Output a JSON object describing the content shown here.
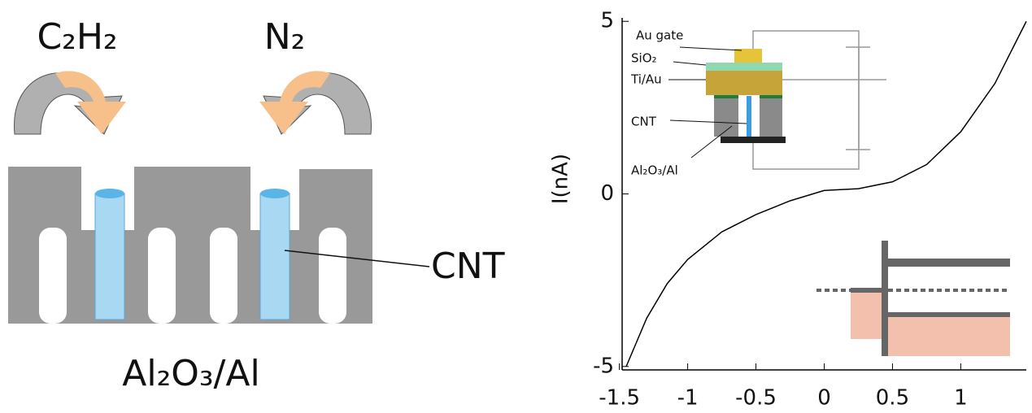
{
  "diagram": {
    "gas_left": "C₂H₂",
    "gas_right": "N₂",
    "cnt_label": "CNT",
    "substrate_label": "Al₂O₃/Al"
  },
  "chart_data": {
    "type": "line",
    "y_label": "I(nA)",
    "x": [
      -1.45,
      -1.3,
      -1.15,
      -1.0,
      -0.75,
      -0.5,
      -0.25,
      0,
      0.25,
      0.5,
      0.75,
      1.0,
      1.25,
      1.48
    ],
    "series": [
      {
        "color": "#000000",
        "values": [
          -5.0,
          -3.6,
          -2.6,
          -1.9,
          -1.1,
          -0.6,
          -0.2,
          0.1,
          0.15,
          0.35,
          0.85,
          1.8,
          3.2,
          5.0
        ]
      }
    ],
    "xlim": [
      -1.48,
      1.48
    ],
    "ylim": [
      -5.1,
      5.1
    ],
    "xticks": [
      -1.5,
      -1,
      -0.5,
      0,
      0.5,
      1
    ],
    "yticks": [
      -5,
      0,
      5
    ],
    "inset": {
      "au_gate": "Au gate",
      "sio2": "SiO₂",
      "tiau": "Ti/Au",
      "cnt": "CNT",
      "substrate": "Al₂O₃/Al"
    }
  }
}
